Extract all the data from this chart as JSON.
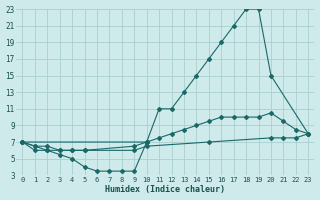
{
  "xlabel": "Humidex (Indice chaleur)",
  "bg_color": "#ceeaea",
  "grid_color": "#aacece",
  "line_color": "#1a6868",
  "xlim": [
    -0.5,
    23.5
  ],
  "ylim": [
    3,
    23
  ],
  "xticks": [
    0,
    1,
    2,
    3,
    4,
    5,
    6,
    7,
    8,
    9,
    10,
    11,
    12,
    13,
    14,
    15,
    16,
    17,
    18,
    19,
    20,
    21,
    22,
    23
  ],
  "yticks": [
    3,
    5,
    7,
    9,
    11,
    13,
    15,
    17,
    19,
    21,
    23
  ],
  "lines": [
    {
      "x": [
        0,
        10,
        11,
        12,
        13,
        14,
        15,
        16,
        17,
        18,
        19,
        20,
        23
      ],
      "y": [
        7,
        7,
        11,
        11,
        13,
        15,
        17,
        19,
        21,
        23,
        23,
        15,
        8
      ]
    },
    {
      "x": [
        0,
        1,
        2,
        3,
        4,
        5,
        9,
        10,
        11,
        12,
        13,
        14,
        15,
        16,
        17,
        18,
        19,
        20,
        21,
        22,
        23
      ],
      "y": [
        7,
        6.5,
        6.5,
        6,
        6,
        6,
        6.5,
        7,
        7.5,
        8,
        8.5,
        9,
        9.5,
        10,
        10,
        10,
        10,
        10.5,
        9.5,
        8.5,
        8
      ]
    },
    {
      "x": [
        0,
        1,
        2,
        3,
        4,
        5,
        6,
        7,
        8,
        9,
        10
      ],
      "y": [
        7,
        6,
        6,
        5.5,
        5,
        4,
        3.5,
        3.5,
        3.5,
        3.5,
        7
      ]
    },
    {
      "x": [
        0,
        1,
        2,
        3,
        4,
        5,
        9,
        10,
        15,
        20,
        21,
        22,
        23
      ],
      "y": [
        7,
        6.5,
        6,
        6,
        6,
        6,
        6,
        6.5,
        7,
        7.5,
        7.5,
        7.5,
        8
      ]
    }
  ]
}
